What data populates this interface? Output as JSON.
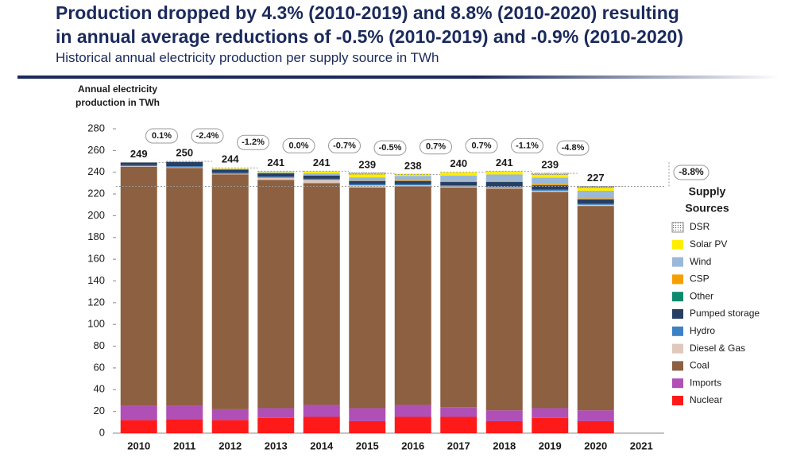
{
  "chart_data": {
    "type": "stacked_bar",
    "title": [
      "Production dropped by 4.3% (2010-2019) and 8.8% (2010-2020) resulting",
      "in annual average reductions of -0.5% (2010-2019) and -0.9% (2010-2020)"
    ],
    "subtitle": "Historical annual electricity production per supply source in TWh",
    "ylabel": [
      "Annual electricity",
      "production in TWh"
    ],
    "legend_title": [
      "Supply",
      "Sources"
    ],
    "categories": [
      "2010",
      "2011",
      "2012",
      "2013",
      "2014",
      "2015",
      "2016",
      "2017",
      "2018",
      "2019",
      "2020",
      "2021"
    ],
    "series": [
      {
        "name": "Nuclear",
        "color": "#ff1a1a",
        "values": [
          12,
          13,
          12,
          14,
          15,
          11,
          15,
          15,
          11,
          14,
          11,
          null
        ]
      },
      {
        "name": "Imports",
        "color": "#b04fb5",
        "values": [
          13,
          12,
          10,
          9,
          11,
          12,
          11,
          9,
          10,
          9,
          10,
          null
        ]
      },
      {
        "name": "Coal",
        "color": "#8c6040",
        "values": [
          220,
          219,
          216,
          210,
          204,
          203,
          201,
          202,
          204,
          199,
          188,
          null
        ]
      },
      {
        "name": "Diesel & Gas",
        "color": "#e0c8bc",
        "values": [
          0.5,
          0.5,
          0.5,
          2,
          3,
          2,
          1,
          1,
          1,
          1,
          1,
          null
        ]
      },
      {
        "name": "Hydro",
        "color": "#3b82c4",
        "values": [
          1,
          1,
          1,
          1,
          1,
          1,
          1,
          1,
          1,
          1,
          1,
          null
        ]
      },
      {
        "name": "Pumped storage",
        "color": "#263f63",
        "values": [
          2.5,
          4,
          3,
          3,
          3,
          3,
          3,
          3,
          4,
          4,
          4,
          null
        ]
      },
      {
        "name": "Other",
        "color": "#0b8a6f",
        "values": [
          0,
          0,
          0,
          0,
          0,
          0,
          0,
          0,
          0,
          0,
          0,
          null
        ]
      },
      {
        "name": "CSP",
        "color": "#f5a000",
        "values": [
          0,
          0,
          0,
          0,
          0,
          0.3,
          0.7,
          1,
          1,
          1,
          1,
          null
        ]
      },
      {
        "name": "Wind",
        "color": "#9ab8d9",
        "values": [
          0,
          0,
          0.5,
          1,
          2,
          3,
          4,
          5,
          6,
          6,
          7,
          null
        ]
      },
      {
        "name": "Solar PV",
        "color": "#ffee00",
        "values": [
          0,
          0,
          0.5,
          1,
          2,
          3,
          2,
          3,
          3,
          3,
          3,
          null
        ]
      },
      {
        "name": "DSR",
        "color": "#ffffff",
        "values": [
          0,
          0,
          0,
          0,
          0,
          1,
          0,
          0,
          0,
          1,
          1,
          null
        ]
      }
    ],
    "totals": [
      249,
      250,
      244,
      241,
      241,
      239,
      238,
      240,
      241,
      239,
      227,
      null
    ],
    "changes": [
      "0.1%",
      "-2.4%",
      "-1.2%",
      "0.0%",
      "-0.7%",
      "-0.5%",
      "0.7%",
      "0.7%",
      "-1.1%",
      "-4.8%"
    ],
    "total_change": "-8.8%",
    "ylim": [
      0,
      280
    ],
    "yticks": [
      0,
      20,
      40,
      60,
      80,
      100,
      120,
      140,
      160,
      180,
      200,
      220,
      240,
      260,
      280
    ]
  }
}
